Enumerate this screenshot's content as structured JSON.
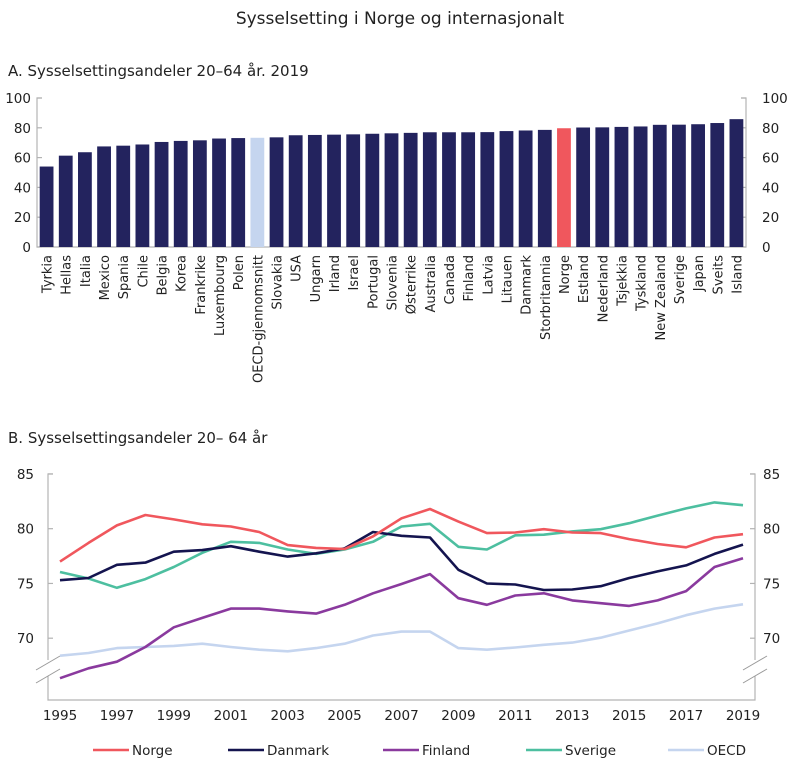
{
  "title": "Sysselsetting  i Norge og internasjonalt",
  "colors": {
    "bar_default": "#23235e",
    "bar_norge": "#f0575d",
    "bar_oecd": "#c5d5ef",
    "axis": "#b3b3b3"
  },
  "chart_data": [
    {
      "type": "bar",
      "title": "A.  Sysselsettingsandeler 20–64 år. 2019",
      "xlabel": "",
      "ylabel": "",
      "ylim": [
        0,
        100
      ],
      "yticks": [
        0,
        20,
        40,
        60,
        80,
        100
      ],
      "ytick_labels": [
        "0",
        "20",
        "40",
        "60",
        "80",
        "100"
      ],
      "secondary_axis": true,
      "grid": false,
      "categories": [
        "Tyrkia",
        "Hellas",
        "Italia",
        "Mexico",
        "Spania",
        "Chile",
        "Belgia",
        "Korea",
        "Frankrike",
        "Luxembourg",
        "Polen",
        "OECD-gjennomsnitt",
        "Slovakia",
        "USA",
        "Ungarn",
        "Irland",
        "Israel",
        "Portugal",
        "Slovenia",
        "Østerrike",
        "Australia",
        "Canada",
        "Finland",
        "Latvia",
        "Litauen",
        "Danmark",
        "Storbritannia",
        "Norge",
        "Estland",
        "Nederland",
        "Tsjekkia",
        "Tyskland",
        "New Zealand",
        "Sverige",
        "Japan",
        "Sveits",
        "Island"
      ],
      "values": [
        54.0,
        61.3,
        63.6,
        67.5,
        68.0,
        68.8,
        70.5,
        71.2,
        71.6,
        72.8,
        73.1,
        73.3,
        73.6,
        75.0,
        75.2,
        75.4,
        75.6,
        76.0,
        76.3,
        76.6,
        77.0,
        77.0,
        77.0,
        77.1,
        77.8,
        78.2,
        78.6,
        79.7,
        80.2,
        80.3,
        80.6,
        80.9,
        82.0,
        82.1,
        82.4,
        83.2,
        85.8
      ],
      "highlight": {
        "Norge": "bar_norge",
        "OECD-gjennomsnitt": "bar_oecd"
      }
    },
    {
      "type": "line",
      "title": "B.  Sysselsettingsandeler 20– 64 år",
      "xlabel": "",
      "ylabel": "",
      "ylim": [
        70,
        85
      ],
      "axis_break_below": true,
      "yticks": [
        70,
        75,
        80,
        85
      ],
      "ytick_labels": [
        "70",
        "75",
        "80",
        "85"
      ],
      "secondary_axis": true,
      "grid": false,
      "x": [
        1995,
        1996,
        1997,
        1998,
        1999,
        2000,
        2001,
        2002,
        2003,
        2004,
        2005,
        2006,
        2007,
        2008,
        2009,
        2010,
        2011,
        2012,
        2013,
        2014,
        2015,
        2016,
        2017,
        2018,
        2019
      ],
      "xticks": [
        1995,
        1997,
        1999,
        2001,
        2003,
        2005,
        2007,
        2009,
        2011,
        2013,
        2015,
        2017,
        2019
      ],
      "xtick_labels": [
        "1995",
        "1997",
        "1999",
        "2001",
        "2003",
        "2005",
        "2007",
        "2009",
        "2011",
        "2013",
        "2015",
        "2017",
        "2019"
      ],
      "legend_position": "bottom",
      "series": [
        {
          "name": "Norge",
          "color": "#f0575d",
          "values": [
            77.0,
            78.7,
            80.3,
            81.25,
            80.85,
            80.4,
            80.2,
            79.7,
            78.5,
            78.25,
            78.15,
            79.3,
            80.95,
            81.8,
            80.65,
            79.6,
            79.65,
            79.95,
            79.65,
            79.6,
            79.05,
            78.6,
            78.3,
            79.2,
            79.5
          ]
        },
        {
          "name": "Danmark",
          "color": "#14144f",
          "values": [
            75.3,
            75.5,
            76.7,
            76.9,
            77.9,
            78.05,
            78.4,
            77.9,
            77.45,
            77.75,
            78.2,
            79.7,
            79.35,
            79.2,
            76.25,
            75.0,
            74.9,
            74.4,
            74.45,
            74.75,
            75.5,
            76.1,
            76.65,
            77.7,
            78.55
          ]
        },
        {
          "name": "Finland",
          "color": "#8a3a9e",
          "values": [
            66.35,
            67.25,
            67.85,
            69.2,
            71.0,
            71.85,
            72.7,
            72.7,
            72.45,
            72.25,
            73.05,
            74.1,
            74.95,
            75.85,
            73.65,
            73.05,
            73.9,
            74.1,
            73.45,
            73.2,
            72.95,
            73.45,
            74.3,
            76.5,
            77.3
          ]
        },
        {
          "name": "Sverige",
          "color": "#4dbfa0",
          "values": [
            76.05,
            75.45,
            74.6,
            75.4,
            76.5,
            77.8,
            78.8,
            78.7,
            78.1,
            77.7,
            78.1,
            78.8,
            80.2,
            80.45,
            78.35,
            78.1,
            79.4,
            79.45,
            79.75,
            79.95,
            80.5,
            81.2,
            81.85,
            82.4,
            82.15
          ]
        },
        {
          "name": "OECD",
          "color": "#c5d5ef",
          "values": [
            68.4,
            68.65,
            69.1,
            69.2,
            69.3,
            69.5,
            69.2,
            68.95,
            68.8,
            69.1,
            69.5,
            70.25,
            70.6,
            70.6,
            69.1,
            68.95,
            69.15,
            69.4,
            69.6,
            70.05,
            70.7,
            71.35,
            72.1,
            72.7,
            73.1
          ]
        }
      ]
    }
  ]
}
